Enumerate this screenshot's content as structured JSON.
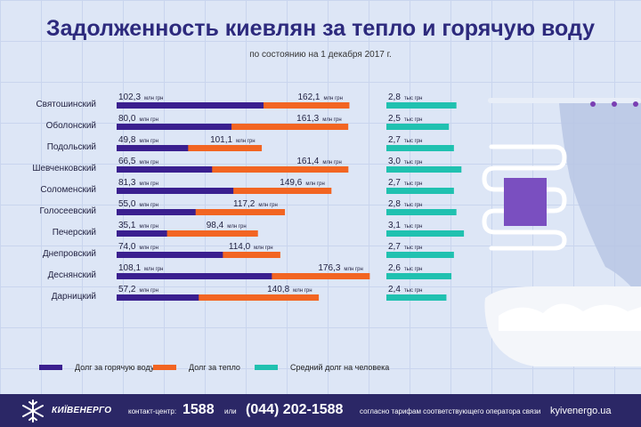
{
  "title": "Задолженность киевлян за тепло и горячую воду",
  "subtitle": "по состоянию на 1 декабря 2017 г.",
  "colors": {
    "hot_water": "#3a1f8f",
    "heat": "#f26522",
    "per_person": "#20c1b0",
    "label": "#1f1f3f",
    "footer_bg": "#2b2766"
  },
  "chart_data": {
    "type": "bar",
    "categories": [
      "Святошинский",
      "Оболонский",
      "Подольский",
      "Шевченковский",
      "Соломенский",
      "Голосеевский",
      "Печерский",
      "Днепровский",
      "Деснянский",
      "Дарницкий"
    ],
    "series": [
      {
        "name": "Долг за горячую воду",
        "values": [
          102.3,
          80.0,
          49.8,
          66.5,
          81.3,
          55.0,
          35.1,
          74.0,
          108.1,
          57.2
        ],
        "labels": [
          "102,3",
          "80,0",
          "49,8",
          "66,5",
          "81,3",
          "55,0",
          "35,1",
          "74,0",
          "108,1",
          "57,2"
        ],
        "unit": "млн грн"
      },
      {
        "name": "Долг за тепло",
        "values": [
          162.1,
          161.3,
          101.1,
          161.4,
          149.6,
          117.2,
          98.4,
          114.0,
          176.3,
          140.8
        ],
        "labels": [
          "162,1",
          "161,3",
          "101,1",
          "161,4",
          "149,6",
          "117,2",
          "98,4",
          "114,0",
          "176,3",
          "140,8"
        ],
        "unit": "млн грн"
      },
      {
        "name": "Средний долг на человека",
        "values": [
          2.8,
          2.5,
          2.7,
          3.0,
          2.7,
          2.8,
          3.1,
          2.7,
          2.6,
          2.4
        ],
        "labels": [
          "2,8",
          "2,5",
          "2,7",
          "3,0",
          "2,7",
          "2,8",
          "3,1",
          "2,7",
          "2,6",
          "2,4"
        ],
        "unit": "тыс грн"
      }
    ]
  },
  "legend": {
    "hot_water": "Долг за горячую воду",
    "heat": "Долг за тепло",
    "per_person": "Средний долг на человека"
  },
  "footer": {
    "logo_text": "КИЇВЕНЕРГО",
    "contact_label": "контакт-центр:",
    "short_number": "1588",
    "or_text": "или",
    "phone": "(044) 202-1588",
    "note": "согласно тарифам соответствующего оператора связи",
    "website": "kyivenergo.ua"
  }
}
